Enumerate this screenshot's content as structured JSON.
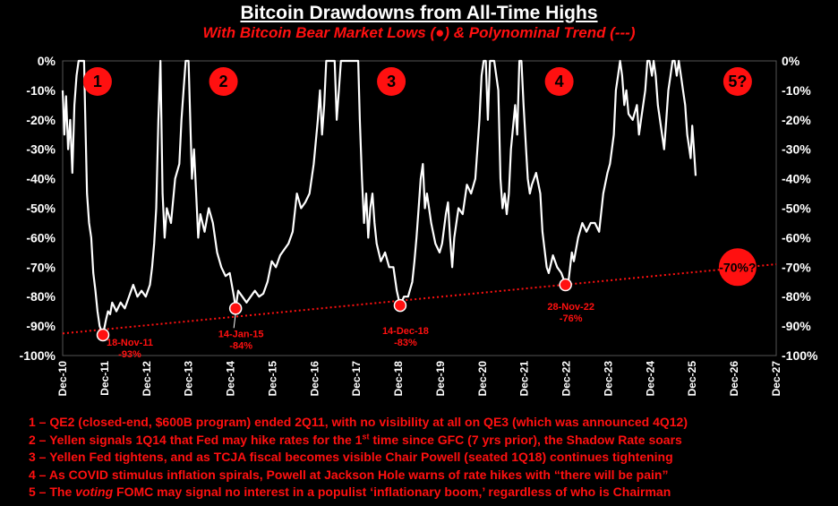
{
  "title": "Bitcoin Drawdowns from All-Time Highs",
  "subtitle": "With Bitcoin Bear Market Lows (●) & Polynominal Trend (---)",
  "colors": {
    "background": "#000000",
    "line": "#ffffff",
    "accent": "#ff1010"
  },
  "chart_data": {
    "type": "line",
    "xlim": [
      2010.92,
      2027.92
    ],
    "ylim": [
      -100,
      0
    ],
    "x_ticks": [
      "Dec-10",
      "Dec-11",
      "Dec-12",
      "Dec-13",
      "Dec-14",
      "Dec-15",
      "Dec-16",
      "Dec-17",
      "Dec-18",
      "Dec-19",
      "Dec-20",
      "Dec-21",
      "Dec-22",
      "Dec-23",
      "Dec-24",
      "Dec-25",
      "Dec-26",
      "Dec-27"
    ],
    "y_ticks": [
      "0%",
      "-10%",
      "-20%",
      "-30%",
      "-40%",
      "-50%",
      "-60%",
      "-70%",
      "-80%",
      "-90%",
      "-100%"
    ],
    "y_values": [
      0,
      -10,
      -20,
      -30,
      -40,
      -50,
      -60,
      -70,
      -80,
      -90,
      -100
    ],
    "series": [
      {
        "values": [
          [
            2010.92,
            -10
          ],
          [
            2010.96,
            -25
          ],
          [
            2011.0,
            -12
          ],
          [
            2011.05,
            -30
          ],
          [
            2011.1,
            -20
          ],
          [
            2011.15,
            -38
          ],
          [
            2011.2,
            -15
          ],
          [
            2011.25,
            -5
          ],
          [
            2011.3,
            0
          ],
          [
            2011.38,
            0
          ],
          [
            2011.43,
            0
          ],
          [
            2011.46,
            -20
          ],
          [
            2011.5,
            -45
          ],
          [
            2011.55,
            -55
          ],
          [
            2011.6,
            -60
          ],
          [
            2011.65,
            -72
          ],
          [
            2011.7,
            -78
          ],
          [
            2011.75,
            -85
          ],
          [
            2011.8,
            -90
          ],
          [
            2011.88,
            -93
          ],
          [
            2011.95,
            -88
          ],
          [
            2012.0,
            -85
          ],
          [
            2012.05,
            -86
          ],
          [
            2012.1,
            -82
          ],
          [
            2012.2,
            -85
          ],
          [
            2012.3,
            -82
          ],
          [
            2012.4,
            -84
          ],
          [
            2012.5,
            -80
          ],
          [
            2012.6,
            -76
          ],
          [
            2012.7,
            -80
          ],
          [
            2012.8,
            -78
          ],
          [
            2012.9,
            -80
          ],
          [
            2013.0,
            -76
          ],
          [
            2013.05,
            -70
          ],
          [
            2013.1,
            -62
          ],
          [
            2013.15,
            -50
          ],
          [
            2013.2,
            -20
          ],
          [
            2013.25,
            0
          ],
          [
            2013.3,
            -45
          ],
          [
            2013.35,
            -60
          ],
          [
            2013.4,
            -50
          ],
          [
            2013.5,
            -55
          ],
          [
            2013.6,
            -40
          ],
          [
            2013.7,
            -35
          ],
          [
            2013.75,
            -20
          ],
          [
            2013.8,
            -10
          ],
          [
            2013.85,
            0
          ],
          [
            2013.92,
            0
          ],
          [
            2013.97,
            -25
          ],
          [
            2014.0,
            -40
          ],
          [
            2014.05,
            -30
          ],
          [
            2014.1,
            -45
          ],
          [
            2014.15,
            -60
          ],
          [
            2014.2,
            -52
          ],
          [
            2014.3,
            -58
          ],
          [
            2014.4,
            -50
          ],
          [
            2014.5,
            -55
          ],
          [
            2014.6,
            -65
          ],
          [
            2014.7,
            -70
          ],
          [
            2014.8,
            -73
          ],
          [
            2014.9,
            -72
          ],
          [
            2015.0,
            -80
          ],
          [
            2015.04,
            -84
          ],
          [
            2015.1,
            -78
          ],
          [
            2015.2,
            -80
          ],
          [
            2015.3,
            -82
          ],
          [
            2015.4,
            -80
          ],
          [
            2015.5,
            -78
          ],
          [
            2015.6,
            -80
          ],
          [
            2015.7,
            -79
          ],
          [
            2015.8,
            -75
          ],
          [
            2015.9,
            -68
          ],
          [
            2016.0,
            -70
          ],
          [
            2016.1,
            -66
          ],
          [
            2016.2,
            -64
          ],
          [
            2016.3,
            -62
          ],
          [
            2016.4,
            -58
          ],
          [
            2016.5,
            -45
          ],
          [
            2016.6,
            -50
          ],
          [
            2016.7,
            -48
          ],
          [
            2016.8,
            -45
          ],
          [
            2016.9,
            -35
          ],
          [
            2017.0,
            -20
          ],
          [
            2017.05,
            -10
          ],
          [
            2017.1,
            -25
          ],
          [
            2017.15,
            -15
          ],
          [
            2017.2,
            0
          ],
          [
            2017.3,
            0
          ],
          [
            2017.4,
            0
          ],
          [
            2017.45,
            -20
          ],
          [
            2017.5,
            -10
          ],
          [
            2017.55,
            0
          ],
          [
            2017.7,
            0
          ],
          [
            2017.8,
            0
          ],
          [
            2017.9,
            0
          ],
          [
            2017.96,
            0
          ],
          [
            2018.0,
            -20
          ],
          [
            2018.05,
            -40
          ],
          [
            2018.1,
            -55
          ],
          [
            2018.15,
            -45
          ],
          [
            2018.2,
            -60
          ],
          [
            2018.25,
            -50
          ],
          [
            2018.3,
            -45
          ],
          [
            2018.35,
            -55
          ],
          [
            2018.4,
            -62
          ],
          [
            2018.5,
            -68
          ],
          [
            2018.6,
            -65
          ],
          [
            2018.7,
            -70
          ],
          [
            2018.8,
            -70
          ],
          [
            2018.88,
            -78
          ],
          [
            2018.96,
            -83
          ],
          [
            2019.05,
            -80
          ],
          [
            2019.15,
            -80
          ],
          [
            2019.25,
            -75
          ],
          [
            2019.3,
            -68
          ],
          [
            2019.35,
            -60
          ],
          [
            2019.4,
            -50
          ],
          [
            2019.45,
            -40
          ],
          [
            2019.5,
            -35
          ],
          [
            2019.55,
            -50
          ],
          [
            2019.6,
            -45
          ],
          [
            2019.7,
            -55
          ],
          [
            2019.8,
            -62
          ],
          [
            2019.9,
            -65
          ],
          [
            2019.96,
            -62
          ],
          [
            2020.05,
            -52
          ],
          [
            2020.1,
            -48
          ],
          [
            2020.15,
            -60
          ],
          [
            2020.2,
            -70
          ],
          [
            2020.25,
            -60
          ],
          [
            2020.35,
            -50
          ],
          [
            2020.45,
            -52
          ],
          [
            2020.55,
            -42
          ],
          [
            2020.65,
            -45
          ],
          [
            2020.75,
            -40
          ],
          [
            2020.85,
            -20
          ],
          [
            2020.9,
            -5
          ],
          [
            2020.95,
            0
          ],
          [
            2021.0,
            0
          ],
          [
            2021.05,
            -20
          ],
          [
            2021.1,
            0
          ],
          [
            2021.2,
            0
          ],
          [
            2021.3,
            -10
          ],
          [
            2021.35,
            -40
          ],
          [
            2021.4,
            -50
          ],
          [
            2021.45,
            -45
          ],
          [
            2021.5,
            -52
          ],
          [
            2021.55,
            -45
          ],
          [
            2021.6,
            -30
          ],
          [
            2021.7,
            -15
          ],
          [
            2021.75,
            -25
          ],
          [
            2021.8,
            0
          ],
          [
            2021.85,
            0
          ],
          [
            2021.9,
            -15
          ],
          [
            2021.96,
            -30
          ],
          [
            2022.0,
            -40
          ],
          [
            2022.05,
            -45
          ],
          [
            2022.1,
            -42
          ],
          [
            2022.2,
            -38
          ],
          [
            2022.3,
            -45
          ],
          [
            2022.35,
            -58
          ],
          [
            2022.45,
            -70
          ],
          [
            2022.5,
            -72
          ],
          [
            2022.6,
            -66
          ],
          [
            2022.7,
            -70
          ],
          [
            2022.8,
            -72
          ],
          [
            2022.9,
            -76
          ],
          [
            2022.97,
            -75
          ],
          [
            2023.05,
            -65
          ],
          [
            2023.1,
            -68
          ],
          [
            2023.2,
            -60
          ],
          [
            2023.3,
            -55
          ],
          [
            2023.4,
            -58
          ],
          [
            2023.5,
            -55
          ],
          [
            2023.6,
            -55
          ],
          [
            2023.7,
            -58
          ],
          [
            2023.8,
            -45
          ],
          [
            2023.9,
            -38
          ],
          [
            2023.96,
            -35
          ],
          [
            2024.05,
            -25
          ],
          [
            2024.1,
            -10
          ],
          [
            2024.15,
            -5
          ],
          [
            2024.2,
            0
          ],
          [
            2024.25,
            -5
          ],
          [
            2024.3,
            -15
          ],
          [
            2024.35,
            -10
          ],
          [
            2024.4,
            -18
          ],
          [
            2024.5,
            -20
          ],
          [
            2024.6,
            -15
          ],
          [
            2024.65,
            -25
          ],
          [
            2024.7,
            -20
          ],
          [
            2024.8,
            -10
          ],
          [
            2024.85,
            0
          ],
          [
            2024.9,
            0
          ],
          [
            2024.96,
            -5
          ],
          [
            2025.0,
            0
          ],
          [
            2025.05,
            -5
          ],
          [
            2025.1,
            -15
          ],
          [
            2025.2,
            -25
          ],
          [
            2025.25,
            -30
          ],
          [
            2025.3,
            -20
          ],
          [
            2025.35,
            -10
          ],
          [
            2025.4,
            -5
          ],
          [
            2025.45,
            0
          ],
          [
            2025.5,
            0
          ],
          [
            2025.55,
            -5
          ],
          [
            2025.6,
            0
          ],
          [
            2025.65,
            -5
          ],
          [
            2025.7,
            -10
          ],
          [
            2025.75,
            -15
          ],
          [
            2025.8,
            -25
          ],
          [
            2025.85,
            -30
          ],
          [
            2025.88,
            -33
          ],
          [
            2025.92,
            -22
          ],
          [
            2025.96,
            -30
          ],
          [
            2026.0,
            -39
          ]
        ]
      }
    ],
    "trend": {
      "points": [
        [
          2010.92,
          -92.5
        ],
        [
          2027.92,
          -69
        ]
      ]
    },
    "lows": [
      {
        "x": 2011.88,
        "y": -93,
        "date": "18-Nov-11",
        "value": "-93%"
      },
      {
        "x": 2015.04,
        "y": -84,
        "date": "14-Jan-15",
        "value": "-84%"
      },
      {
        "x": 2018.96,
        "y": -83,
        "date": "14-Dec-18",
        "value": "-83%"
      },
      {
        "x": 2022.9,
        "y": -76,
        "date": "28-Nov-22",
        "value": "-76%"
      }
    ],
    "projection": {
      "x": 2027.0,
      "y": -70,
      "label": "-70%?"
    },
    "badges": [
      {
        "label": "1",
        "x": 2011.75,
        "y": -7
      },
      {
        "label": "2",
        "x": 2014.75,
        "y": -7
      },
      {
        "label": "3",
        "x": 2018.75,
        "y": -7
      },
      {
        "label": "4",
        "x": 2022.75,
        "y": -7
      },
      {
        "label": "5?",
        "x": 2027.0,
        "y": -7
      }
    ]
  },
  "notes": [
    {
      "num": "1",
      "parts": [
        "QE2 (closed-end, $600B program) ended 2Q11, with no visibility at all on QE3 (which was announced 4Q12)"
      ]
    },
    {
      "num": "2",
      "parts": [
        "Yellen signals 1Q14 that Fed may hike rates for the 1",
        "st",
        " time since GFC (7 yrs prior), the Shadow Rate soars"
      ]
    },
    {
      "num": "3",
      "parts": [
        "Yellen Fed tightens, and as TCJA fiscal becomes visible Chair Powell (seated 1Q18) continues tightening"
      ]
    },
    {
      "num": "4",
      "parts": [
        "As COVID stimulus inflation spirals, Powell at Jackson Hole warns of rate hikes with “there will be pain”"
      ]
    },
    {
      "num": "5",
      "parts": [
        "The ",
        "voting",
        " FOMC may signal no interest in a populist ‘inflationary boom,’ regardless of who is Chairman"
      ]
    }
  ]
}
